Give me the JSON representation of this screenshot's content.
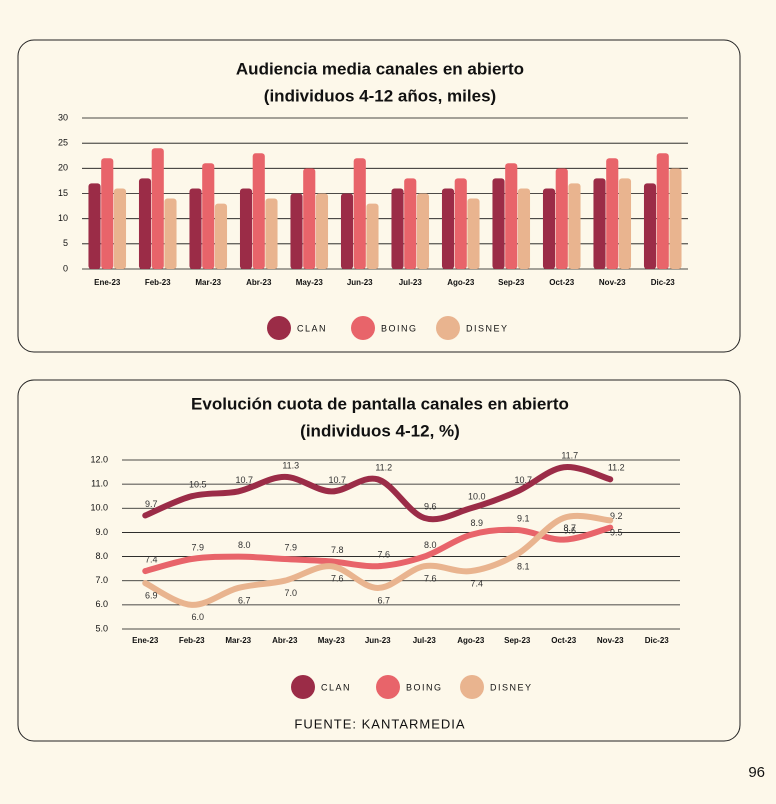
{
  "chart_data": [
    {
      "type": "bar",
      "title": "Audiencia media canales en abierto",
      "subtitle": "(individuos 4-12 años, miles)",
      "categories": [
        "Ene-23",
        "Feb-23",
        "Mar-23",
        "Abr-23",
        "May-23",
        "Jun-23",
        "Jul-23",
        "Ago-23",
        "Sep-23",
        "Oct-23",
        "Nov-23",
        "Dic-23"
      ],
      "series": [
        {
          "name": "CLAN",
          "color": "#9b2c47",
          "values": [
            17,
            18,
            16,
            16,
            15,
            15,
            16,
            16,
            18,
            16,
            18,
            17
          ]
        },
        {
          "name": "BOING",
          "color": "#e8646a",
          "values": [
            22,
            24,
            21,
            23,
            20,
            22,
            18,
            18,
            21,
            20,
            22,
            23
          ]
        },
        {
          "name": "DISNEY",
          "color": "#e9b48f",
          "values": [
            16,
            14,
            13,
            14,
            15,
            13,
            15,
            14,
            16,
            17,
            18,
            20
          ]
        }
      ],
      "ylim": [
        0,
        30
      ],
      "yticks": [
        0,
        5,
        10,
        15,
        20,
        25,
        30
      ],
      "grid": true
    },
    {
      "type": "line",
      "title": "Evolución cuota de pantalla canales en abierto",
      "subtitle": "(individuos 4-12, %)",
      "categories": [
        "Ene-23",
        "Feb-23",
        "Mar-23",
        "Abr-23",
        "May-23",
        "Jun-23",
        "Jul-23",
        "Ago-23",
        "Sep-23",
        "Oct-23",
        "Nov-23",
        "Dic-23"
      ],
      "series": [
        {
          "name": "CLAN",
          "color": "#9b2c47",
          "values": [
            9.7,
            10.5,
            10.7,
            11.3,
            10.7,
            11.2,
            9.6,
            10.0,
            10.7,
            11.7,
            11.2,
            null
          ],
          "value_labels": [
            "9.7",
            "10.5",
            "10.7",
            "11.3",
            "10.7",
            "11.2",
            "9.6",
            "10.0",
            "10.7",
            "11.7",
            "11.2",
            null
          ]
        },
        {
          "name": "BOING",
          "color": "#e8646a",
          "values": [
            7.4,
            7.9,
            8.0,
            7.9,
            7.8,
            7.6,
            8.0,
            8.9,
            9.1,
            8.7,
            9.2,
            null
          ],
          "value_labels": [
            "7.4",
            "7.9",
            "8.0",
            "7.9",
            "7.8",
            "7.6",
            "8.0",
            "8.9",
            "9.1",
            "8.7",
            "9.2",
            null
          ]
        },
        {
          "name": "DISNEY",
          "color": "#e9b48f",
          "values": [
            6.9,
            6.0,
            6.7,
            7.0,
            7.6,
            6.7,
            7.6,
            7.4,
            8.1,
            9.6,
            9.5,
            null
          ],
          "value_labels": [
            "6.9",
            "6.0",
            "6.7",
            "7.0",
            "7.6",
            "6.7",
            "7.6",
            "7.4",
            "8.1",
            "9.6",
            "9.5",
            null
          ]
        }
      ],
      "ylim": [
        5,
        12
      ],
      "yticks": [
        {
          "value": 5,
          "label": "5.0"
        },
        {
          "value": 6,
          "label": "6.0"
        },
        {
          "value": 7,
          "label": "7.0"
        },
        {
          "value": 8,
          "label": "8.0"
        },
        {
          "value": 9,
          "label": "9.0"
        },
        {
          "value": 10,
          "label": "10.0"
        },
        {
          "value": 11,
          "label": "11.0"
        },
        {
          "value": 12,
          "label": "12.0"
        }
      ],
      "grid": true
    }
  ],
  "source": "FUENTE: KANTARMEDIA",
  "page_number": "96"
}
